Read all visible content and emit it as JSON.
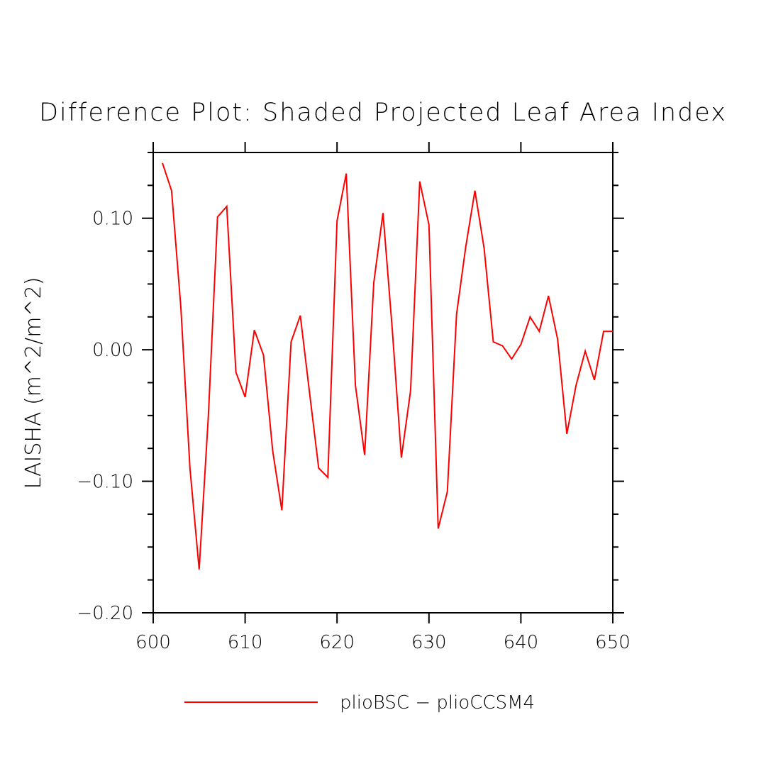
{
  "chart_data": {
    "type": "line",
    "title": "Difference Plot: Shaded Projected Leaf Area Index",
    "xlabel": "",
    "ylabel": "LAISHA   (m^2/m^2)",
    "xlim": [
      600,
      650
    ],
    "ylim": [
      -0.2,
      0.15
    ],
    "x_ticks": [
      600,
      610,
      620,
      630,
      640,
      650
    ],
    "x_tick_labels": [
      "600",
      "610",
      "620",
      "630",
      "640",
      "650"
    ],
    "y_ticks": [
      -0.2,
      -0.1,
      0.0,
      0.1
    ],
    "y_tick_labels": [
      "−0.20",
      "−0.10",
      "0.00",
      "0.10"
    ],
    "grid": false,
    "legend_position": "bottom",
    "series": [
      {
        "name": "plioBSC − plioCCSM4",
        "color": "#ff0000",
        "x": [
          601,
          602,
          603,
          604,
          605,
          606,
          607,
          608,
          609,
          610,
          611,
          612,
          613,
          614,
          615,
          616,
          617,
          618,
          619,
          620,
          621,
          622,
          623,
          624,
          625,
          626,
          627,
          628,
          629,
          630,
          631,
          632,
          633,
          634,
          635,
          636,
          637,
          638,
          639,
          640,
          641,
          642,
          643,
          644,
          645,
          646,
          647,
          648,
          649,
          650
        ],
        "y": [
          0.142,
          0.121,
          0.033,
          -0.09,
          -0.167,
          -0.05,
          0.101,
          0.109,
          -0.017,
          -0.036,
          0.015,
          -0.004,
          -0.077,
          -0.122,
          0.006,
          0.026,
          -0.032,
          -0.09,
          -0.097,
          0.098,
          0.134,
          -0.027,
          -0.08,
          0.051,
          0.104,
          0.016,
          -0.082,
          -0.031,
          0.128,
          0.095,
          -0.136,
          -0.108,
          0.027,
          0.078,
          0.121,
          0.077,
          0.006,
          0.003,
          -0.007,
          0.004,
          0.025,
          0.014,
          0.041,
          0.008,
          -0.064,
          -0.027,
          -0.001,
          -0.023,
          0.014,
          0.014
        ]
      }
    ]
  }
}
